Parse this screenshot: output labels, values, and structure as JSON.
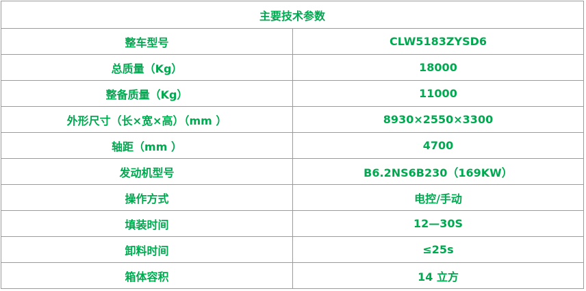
{
  "table": {
    "title": "主要技术参数",
    "rows": [
      [
        "整车型号",
        "CLW5183ZYSD6"
      ],
      [
        "总质量（Kg）",
        "18000"
      ],
      [
        "整备质量（Kg）",
        "11000"
      ],
      [
        "外形尺寸（长×宽×高）（mm ）",
        "8930×2550×3300"
      ],
      [
        "轴距（mm ）",
        "4700"
      ],
      [
        "发动机型号",
        "B6.2NS6B230（169KW）"
      ],
      [
        "操作方式",
        "电控/手动"
      ],
      [
        "填装时间",
        "12—30S"
      ],
      [
        "卸料时间",
        "≤25s"
      ],
      [
        "箱体容积",
        "14 立方"
      ]
    ]
  }
}
